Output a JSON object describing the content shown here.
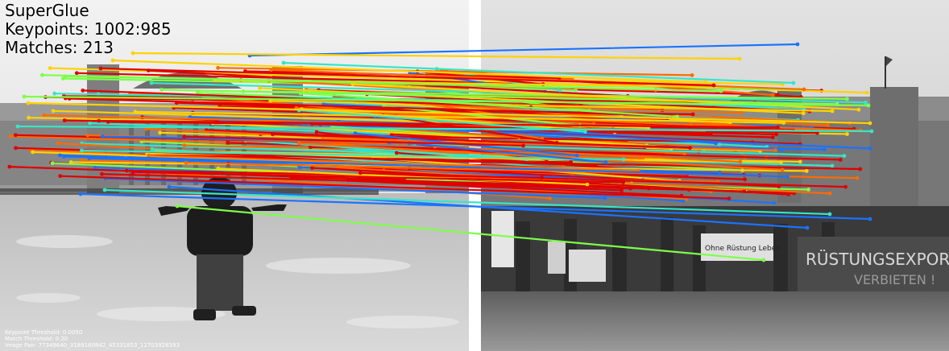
{
  "overlay": {
    "title": "SuperGlue",
    "keypoints": "Keypoints: 1002:985",
    "matches": "Matches: 213"
  },
  "footer": {
    "keypoint_threshold": "Keypoint Threshold: 0.0050",
    "match_threshold": "Match Threshold: 0.20",
    "image_pair": "Image Pair: 77349640_3189160842_45331853_12703928393"
  },
  "colors": {
    "gap": "#ffffff",
    "sky_left": "#e9e9e9",
    "sky_right": "#d4d4d4",
    "building": "#8f8f8f",
    "ground_left": "#c9c9c9",
    "ground_right": "#7a7a7a",
    "match_red": "#e00000",
    "match_orange": "#ff6a00",
    "match_yellow": "#ffd200",
    "match_green": "#7dff4a",
    "match_cyan": "#35e6c8",
    "match_blue": "#1a73ff"
  },
  "images": {
    "left": "left-photo",
    "right": "right-photo"
  }
}
